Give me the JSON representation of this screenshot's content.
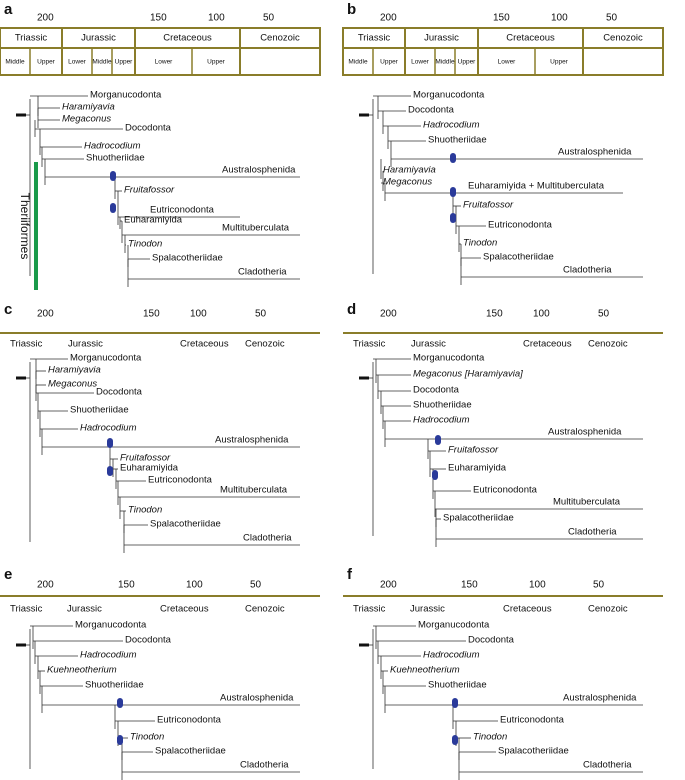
{
  "panels": [
    {
      "letter": "a",
      "ages": [
        "200",
        "150",
        "100",
        "50"
      ],
      "periods": [
        "Triassic",
        "Jurassic",
        "Cretaceous",
        "Cenozoic"
      ],
      "epochs": [
        "Middle",
        "Upper",
        "Lower",
        "Middle",
        "Upper",
        "Lower",
        "Upper"
      ],
      "taxa": [
        "Morganucodonta",
        "Haramiyavia",
        "Megaconus",
        "Docodonta",
        "Hadrocodium",
        "Shuotheriidae",
        "Australosphenida",
        "Fruitafossor",
        "Eutriconodonta",
        "Euharamiyida",
        "Multituberculata",
        "Tinodon",
        "Spalacotheriidae",
        "Cladotheria"
      ],
      "bracket": "Theriiformes"
    },
    {
      "letter": "b",
      "ages": [
        "200",
        "150",
        "100",
        "50"
      ],
      "periods": [
        "Triassic",
        "Jurassic",
        "Cretaceous",
        "Cenozoic"
      ],
      "epochs": [
        "Middle",
        "Upper",
        "Lower",
        "Middle",
        "Upper",
        "Lower",
        "Upper"
      ],
      "taxa": [
        "Morganucodonta",
        "Docodonta",
        "Hadrocodium",
        "Shuotheriidae",
        "Australosphenida",
        "Haramiyavia",
        "Megaconus",
        "Euharamiyida + Multituberculata",
        "Fruitafossor",
        "Eutriconodonta",
        "Tinodon",
        "Spalacotheriidae",
        "Cladotheria"
      ]
    },
    {
      "letter": "c",
      "ages": [
        "200",
        "150",
        "100",
        "50"
      ],
      "periods": [
        "Triassic",
        "Jurassic",
        "Cretaceous",
        "Cenozoic"
      ],
      "taxa": [
        "Morganucodonta",
        "Haramiyavia",
        "Megaconus",
        "Docodonta",
        "Shuotheriidae",
        "Hadrocodium",
        "Australosphenida",
        "Fruitafossor",
        "Euharamiyida",
        "Eutriconodonta",
        "Multituberculata",
        "Tinodon",
        "Spalacotheriidae",
        "Cladotheria"
      ]
    },
    {
      "letter": "d",
      "ages": [
        "200",
        "150",
        "100",
        "50"
      ],
      "periods": [
        "Triassic",
        "Jurassic",
        "Cretaceous",
        "Cenozoic"
      ],
      "taxa": [
        "Morganucodonta",
        "Megaconus [Haramiyavia]",
        "Docodonta",
        "Shuotheriidae",
        "Hadrocodium",
        "Australosphenida",
        "Fruitafossor",
        "Euharamiyida",
        "Eutriconodonta",
        "Multituberculata",
        "Spalacotheriidae",
        "Cladotheria"
      ]
    },
    {
      "letter": "e",
      "ages": [
        "200",
        "150",
        "100",
        "50"
      ],
      "periods": [
        "Triassic",
        "Jurassic",
        "Cretaceous",
        "Cenozoic"
      ],
      "taxa": [
        "Morganucodonta",
        "Docodonta",
        "Hadrocodium",
        "Kuehneotherium",
        "Shuotheriidae",
        "Australosphenida",
        "Eutriconodonta",
        "Tinodon",
        "Spalacotheriidae",
        "Cladotheria"
      ]
    },
    {
      "letter": "f",
      "ages": [
        "200",
        "150",
        "100",
        "50"
      ],
      "periods": [
        "Triassic",
        "Jurassic",
        "Cretaceous",
        "Cenozoic"
      ],
      "taxa": [
        "Morganucodonta",
        "Docodonta",
        "Hadrocodium",
        "Kuehneotherium",
        "Shuotheriidae",
        "Australosphenida",
        "Eutriconodonta",
        "Tinodon",
        "Spalacotheriidae",
        "Cladotheria"
      ]
    }
  ]
}
